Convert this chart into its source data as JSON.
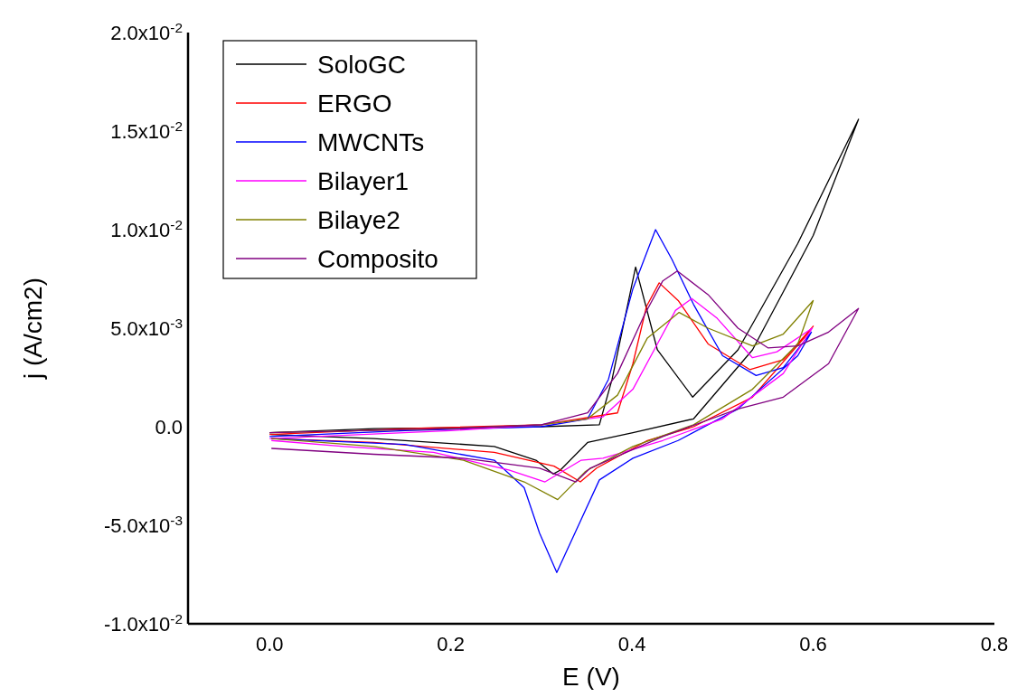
{
  "chart_data": {
    "type": "line",
    "xlabel": "E (V)",
    "ylabel": "j (A/cm2)",
    "xlim": [
      -0.09,
      0.8
    ],
    "ylim": [
      -0.01,
      0.02
    ],
    "xticks": [
      {
        "value": 0,
        "label": "0.0"
      },
      0.2,
      0.4,
      0.6,
      0.8
    ],
    "yticks": [
      {
        "value": -0.01,
        "label": "-1.0x10$^{-2}$"
      },
      {
        "value": -0.005,
        "label": "-5.0x10$^{-3}$"
      },
      {
        "value": 0,
        "label": "0.0"
      },
      {
        "value": 0.005,
        "label": "5.0x10$^{-3}$"
      },
      {
        "value": 0.01,
        "label": "1.0x10$^{-2}$"
      },
      {
        "value": 0.015,
        "label": "1.5x10$^{-2}$"
      },
      {
        "value": 0.02,
        "label": "2.0x10$^{-2}$"
      }
    ],
    "grid": false,
    "legend": "top left",
    "marker": "none",
    "line_style": "solid",
    "series": [
      {
        "name": "SoloGC",
        "color": "#000000",
        "x": [
          0,
          0.115,
          0.3,
          0.364,
          0.378,
          0.404,
          0.428,
          0.467,
          0.517,
          0.583,
          0.65,
          0.6,
          0.533,
          0.468,
          0.401,
          0.351,
          0.321,
          0.313,
          0.294,
          0.248,
          0.115,
          0.002
        ],
        "values": [
          -0.0003,
          -0.0001,
          0,
          0.0001,
          0.0024,
          0.0081,
          0.0039,
          0.0015,
          0.0039,
          0.0093,
          0.0156,
          0.0097,
          0.0039,
          0.0004,
          -0.0003,
          -0.0008,
          -0.0022,
          -0.0024,
          -0.0017,
          -0.001,
          -0.0006,
          -0.0004
        ]
      },
      {
        "name": "ERGO",
        "color": "#ff0000",
        "x": [
          0,
          0.15,
          0.3,
          0.384,
          0.401,
          0.416,
          0.43,
          0.451,
          0.484,
          0.53,
          0.567,
          0.6,
          0.59,
          0.533,
          0.468,
          0.417,
          0.361,
          0.343,
          0.314,
          0.248,
          0.115,
          0.002
        ],
        "values": [
          -0.0004,
          -0.0001,
          0.0001,
          0.0007,
          0.0032,
          0.0061,
          0.0073,
          0.0064,
          0.0042,
          0.0029,
          0.0034,
          0.0051,
          0.0045,
          0.0015,
          0,
          -0.0007,
          -0.0021,
          -0.0028,
          -0.002,
          -0.0013,
          -0.0008,
          -0.0006
        ]
      },
      {
        "name": "MWCNTs",
        "color": "#0000ff",
        "x": [
          0,
          0.15,
          0.3,
          0.351,
          0.374,
          0.401,
          0.426,
          0.444,
          0.468,
          0.5,
          0.537,
          0.567,
          0.598,
          0.583,
          0.517,
          0.451,
          0.401,
          0.364,
          0.341,
          0.317,
          0.298,
          0.281,
          0.248,
          0.149,
          0.002
        ],
        "values": [
          -0.0005,
          -0.0002,
          0,
          0.0004,
          0.0024,
          0.007,
          0.01,
          0.0085,
          0.0062,
          0.0036,
          0.0026,
          0.003,
          0.0048,
          0.0036,
          0.0009,
          -0.0007,
          -0.0016,
          -0.0027,
          -0.005,
          -0.0074,
          -0.0054,
          -0.0031,
          -0.0017,
          -0.0009,
          -0.0006
        ]
      },
      {
        "name": "Bilayer1",
        "color": "#ff00ff",
        "x": [
          0,
          0.2,
          0.3,
          0.368,
          0.401,
          0.428,
          0.448,
          0.466,
          0.494,
          0.533,
          0.56,
          0.599,
          0.567,
          0.5,
          0.434,
          0.368,
          0.344,
          0.304,
          0.264,
          0.181,
          0.082,
          0.002
        ],
        "values": [
          -0.0006,
          -0.0002,
          0.0001,
          0.0005,
          0.0019,
          0.0042,
          0.0059,
          0.0065,
          0.0055,
          0.0035,
          0.0038,
          0.005,
          0.0027,
          0.0004,
          -0.0007,
          -0.0016,
          -0.0017,
          -0.0028,
          -0.0022,
          -0.0013,
          -0.001,
          -0.0007
        ]
      },
      {
        "name": "Bilaye2",
        "color": "#808000",
        "x": [
          0,
          0.2,
          0.3,
          0.351,
          0.384,
          0.417,
          0.452,
          0.484,
          0.533,
          0.567,
          0.6,
          0.583,
          0.533,
          0.468,
          0.401,
          0.351,
          0.348,
          0.318,
          0.281,
          0.214,
          0.115,
          0.002
        ],
        "values": [
          -0.0003,
          -0.0001,
          0.0001,
          0.0004,
          0.0016,
          0.0045,
          0.0058,
          0.005,
          0.0041,
          0.0047,
          0.0064,
          0.0042,
          0.0019,
          0.0001,
          -0.001,
          -0.0022,
          -0.0023,
          -0.0037,
          -0.0028,
          -0.0017,
          -0.001,
          -0.0006
        ]
      },
      {
        "name": "Composito",
        "color": "#800080",
        "x": [
          0,
          0.2,
          0.3,
          0.351,
          0.384,
          0.414,
          0.434,
          0.45,
          0.484,
          0.517,
          0.55,
          0.583,
          0.617,
          0.65,
          0.617,
          0.567,
          0.517,
          0.434,
          0.354,
          0.338,
          0.298,
          0.214,
          0.115,
          0.002
        ],
        "values": [
          -0.0003,
          -0.0001,
          0.0001,
          0.0007,
          0.0027,
          0.0057,
          0.0074,
          0.0079,
          0.0067,
          0.005,
          0.004,
          0.0041,
          0.0048,
          0.006,
          0.0032,
          0.0015,
          0.0009,
          -0.0005,
          -0.0021,
          -0.0028,
          -0.0021,
          -0.0016,
          -0.0014,
          -0.0011
        ]
      }
    ]
  }
}
